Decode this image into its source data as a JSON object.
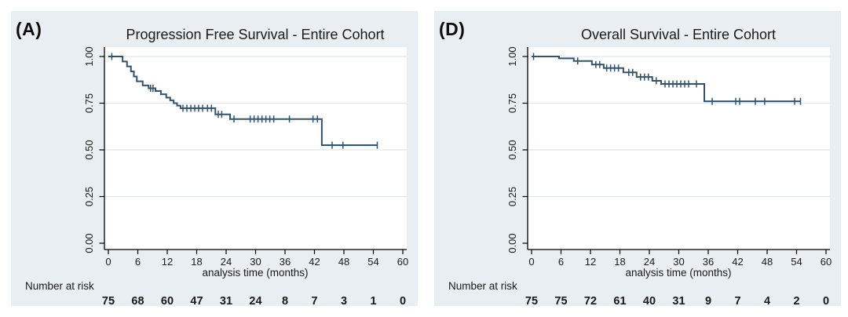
{
  "colors": {
    "page_bg": "#ffffff",
    "panel_bg": "#e8eef1",
    "plot_bg": "#ffffff",
    "grid_line": "#dce8ee",
    "axis_line": "#000000",
    "curve": "#31536f",
    "title_text": "#33427f",
    "tick_text": "#1a1a1a"
  },
  "chart_data": [
    {
      "type": "line",
      "subtype": "kaplan-meier-step",
      "panel_label": "(A)",
      "title": "Progression Free Survival - Entire Cohort",
      "xlabel": "analysis time (months)",
      "xlim": [
        0,
        60
      ],
      "ylim": [
        0,
        1
      ],
      "x_tick_values": [
        0,
        6,
        12,
        18,
        24,
        30,
        36,
        42,
        48,
        54,
        60
      ],
      "x_tick_labels": [
        "0",
        "6",
        "12",
        "18",
        "24",
        "30",
        "36",
        "42",
        "48",
        "54",
        "60"
      ],
      "y_tick_values": [
        0,
        0.25,
        0.5,
        0.75,
        1
      ],
      "y_tick_labels": [
        "0.00",
        "0.25",
        "0.50",
        "0.75",
        "1.00"
      ],
      "grid": "horizontal",
      "legend": "none",
      "line_color": "#31536f",
      "steps": [
        [
          0,
          1.0
        ],
        [
          2.9,
          0.973
        ],
        [
          3.8,
          0.947
        ],
        [
          4.6,
          0.92
        ],
        [
          5.2,
          0.893
        ],
        [
          5.8,
          0.867
        ],
        [
          7.0,
          0.845
        ],
        [
          8.2,
          0.83
        ],
        [
          9.6,
          0.815
        ],
        [
          10.7,
          0.798
        ],
        [
          11.8,
          0.78
        ],
        [
          12.6,
          0.765
        ],
        [
          13.3,
          0.75
        ],
        [
          14.0,
          0.737
        ],
        [
          14.7,
          0.723
        ],
        [
          21.8,
          0.69
        ],
        [
          24.8,
          0.665
        ],
        [
          43.5,
          0.525
        ]
      ],
      "end_time": 54.8,
      "censor_marks": [
        [
          0.7,
          1.0
        ],
        [
          8.6,
          0.83
        ],
        [
          9.1,
          0.83
        ],
        [
          15.2,
          0.723
        ],
        [
          16.0,
          0.723
        ],
        [
          16.8,
          0.723
        ],
        [
          17.6,
          0.723
        ],
        [
          18.4,
          0.723
        ],
        [
          19.2,
          0.723
        ],
        [
          20.2,
          0.723
        ],
        [
          21.0,
          0.723
        ],
        [
          22.4,
          0.69
        ],
        [
          23.1,
          0.69
        ],
        [
          25.6,
          0.665
        ],
        [
          28.9,
          0.665
        ],
        [
          29.7,
          0.665
        ],
        [
          30.5,
          0.665
        ],
        [
          31.3,
          0.665
        ],
        [
          32.1,
          0.665
        ],
        [
          32.9,
          0.665
        ],
        [
          33.7,
          0.665
        ],
        [
          36.9,
          0.665
        ],
        [
          41.7,
          0.665
        ],
        [
          42.6,
          0.665
        ],
        [
          45.6,
          0.525
        ],
        [
          47.8,
          0.525
        ],
        [
          54.8,
          0.525
        ]
      ],
      "number_at_risk_label": "Number at risk",
      "number_at_risk": [
        "75",
        "68",
        "60",
        "47",
        "31",
        "24",
        "8",
        "7",
        "3",
        "1",
        "0"
      ]
    },
    {
      "type": "line",
      "subtype": "kaplan-meier-step",
      "panel_label": "(D)",
      "title": "Overall Survival - Entire Cohort",
      "xlabel": "analysis time (months)",
      "xlim": [
        0,
        60
      ],
      "ylim": [
        0,
        1
      ],
      "x_tick_values": [
        0,
        6,
        12,
        18,
        24,
        30,
        36,
        42,
        48,
        54,
        60
      ],
      "x_tick_labels": [
        "0",
        "6",
        "12",
        "18",
        "24",
        "30",
        "36",
        "42",
        "48",
        "54",
        "60"
      ],
      "y_tick_values": [
        0,
        0.25,
        0.5,
        0.75,
        1
      ],
      "y_tick_labels": [
        "0.00",
        "0.25",
        "0.50",
        "0.75",
        "1.00"
      ],
      "grid": "horizontal",
      "legend": "none",
      "line_color": "#31536f",
      "steps": [
        [
          0,
          1.0
        ],
        [
          5.6,
          0.99
        ],
        [
          8.6,
          0.976
        ],
        [
          12.3,
          0.957
        ],
        [
          14.7,
          0.938
        ],
        [
          18.7,
          0.915
        ],
        [
          21.4,
          0.89
        ],
        [
          24.6,
          0.87
        ],
        [
          26.4,
          0.853
        ],
        [
          35.2,
          0.76
        ]
      ],
      "end_time": 54.8,
      "censor_marks": [
        [
          0.4,
          1.0
        ],
        [
          9.4,
          0.976
        ],
        [
          13.1,
          0.957
        ],
        [
          13.9,
          0.957
        ],
        [
          15.3,
          0.938
        ],
        [
          16.1,
          0.938
        ],
        [
          16.9,
          0.938
        ],
        [
          17.7,
          0.938
        ],
        [
          19.8,
          0.915
        ],
        [
          20.6,
          0.915
        ],
        [
          22.2,
          0.89
        ],
        [
          23.0,
          0.89
        ],
        [
          23.8,
          0.89
        ],
        [
          25.4,
          0.87
        ],
        [
          27.2,
          0.853
        ],
        [
          28.0,
          0.853
        ],
        [
          28.8,
          0.853
        ],
        [
          29.6,
          0.853
        ],
        [
          30.4,
          0.853
        ],
        [
          31.2,
          0.853
        ],
        [
          32.0,
          0.853
        ],
        [
          33.6,
          0.853
        ],
        [
          36.8,
          0.76
        ],
        [
          41.6,
          0.76
        ],
        [
          42.4,
          0.76
        ],
        [
          45.6,
          0.76
        ],
        [
          47.5,
          0.76
        ],
        [
          53.6,
          0.76
        ],
        [
          54.8,
          0.76
        ]
      ],
      "number_at_risk_label": "Number at risk",
      "number_at_risk": [
        "75",
        "75",
        "72",
        "61",
        "40",
        "31",
        "9",
        "7",
        "4",
        "2",
        "0"
      ]
    }
  ]
}
